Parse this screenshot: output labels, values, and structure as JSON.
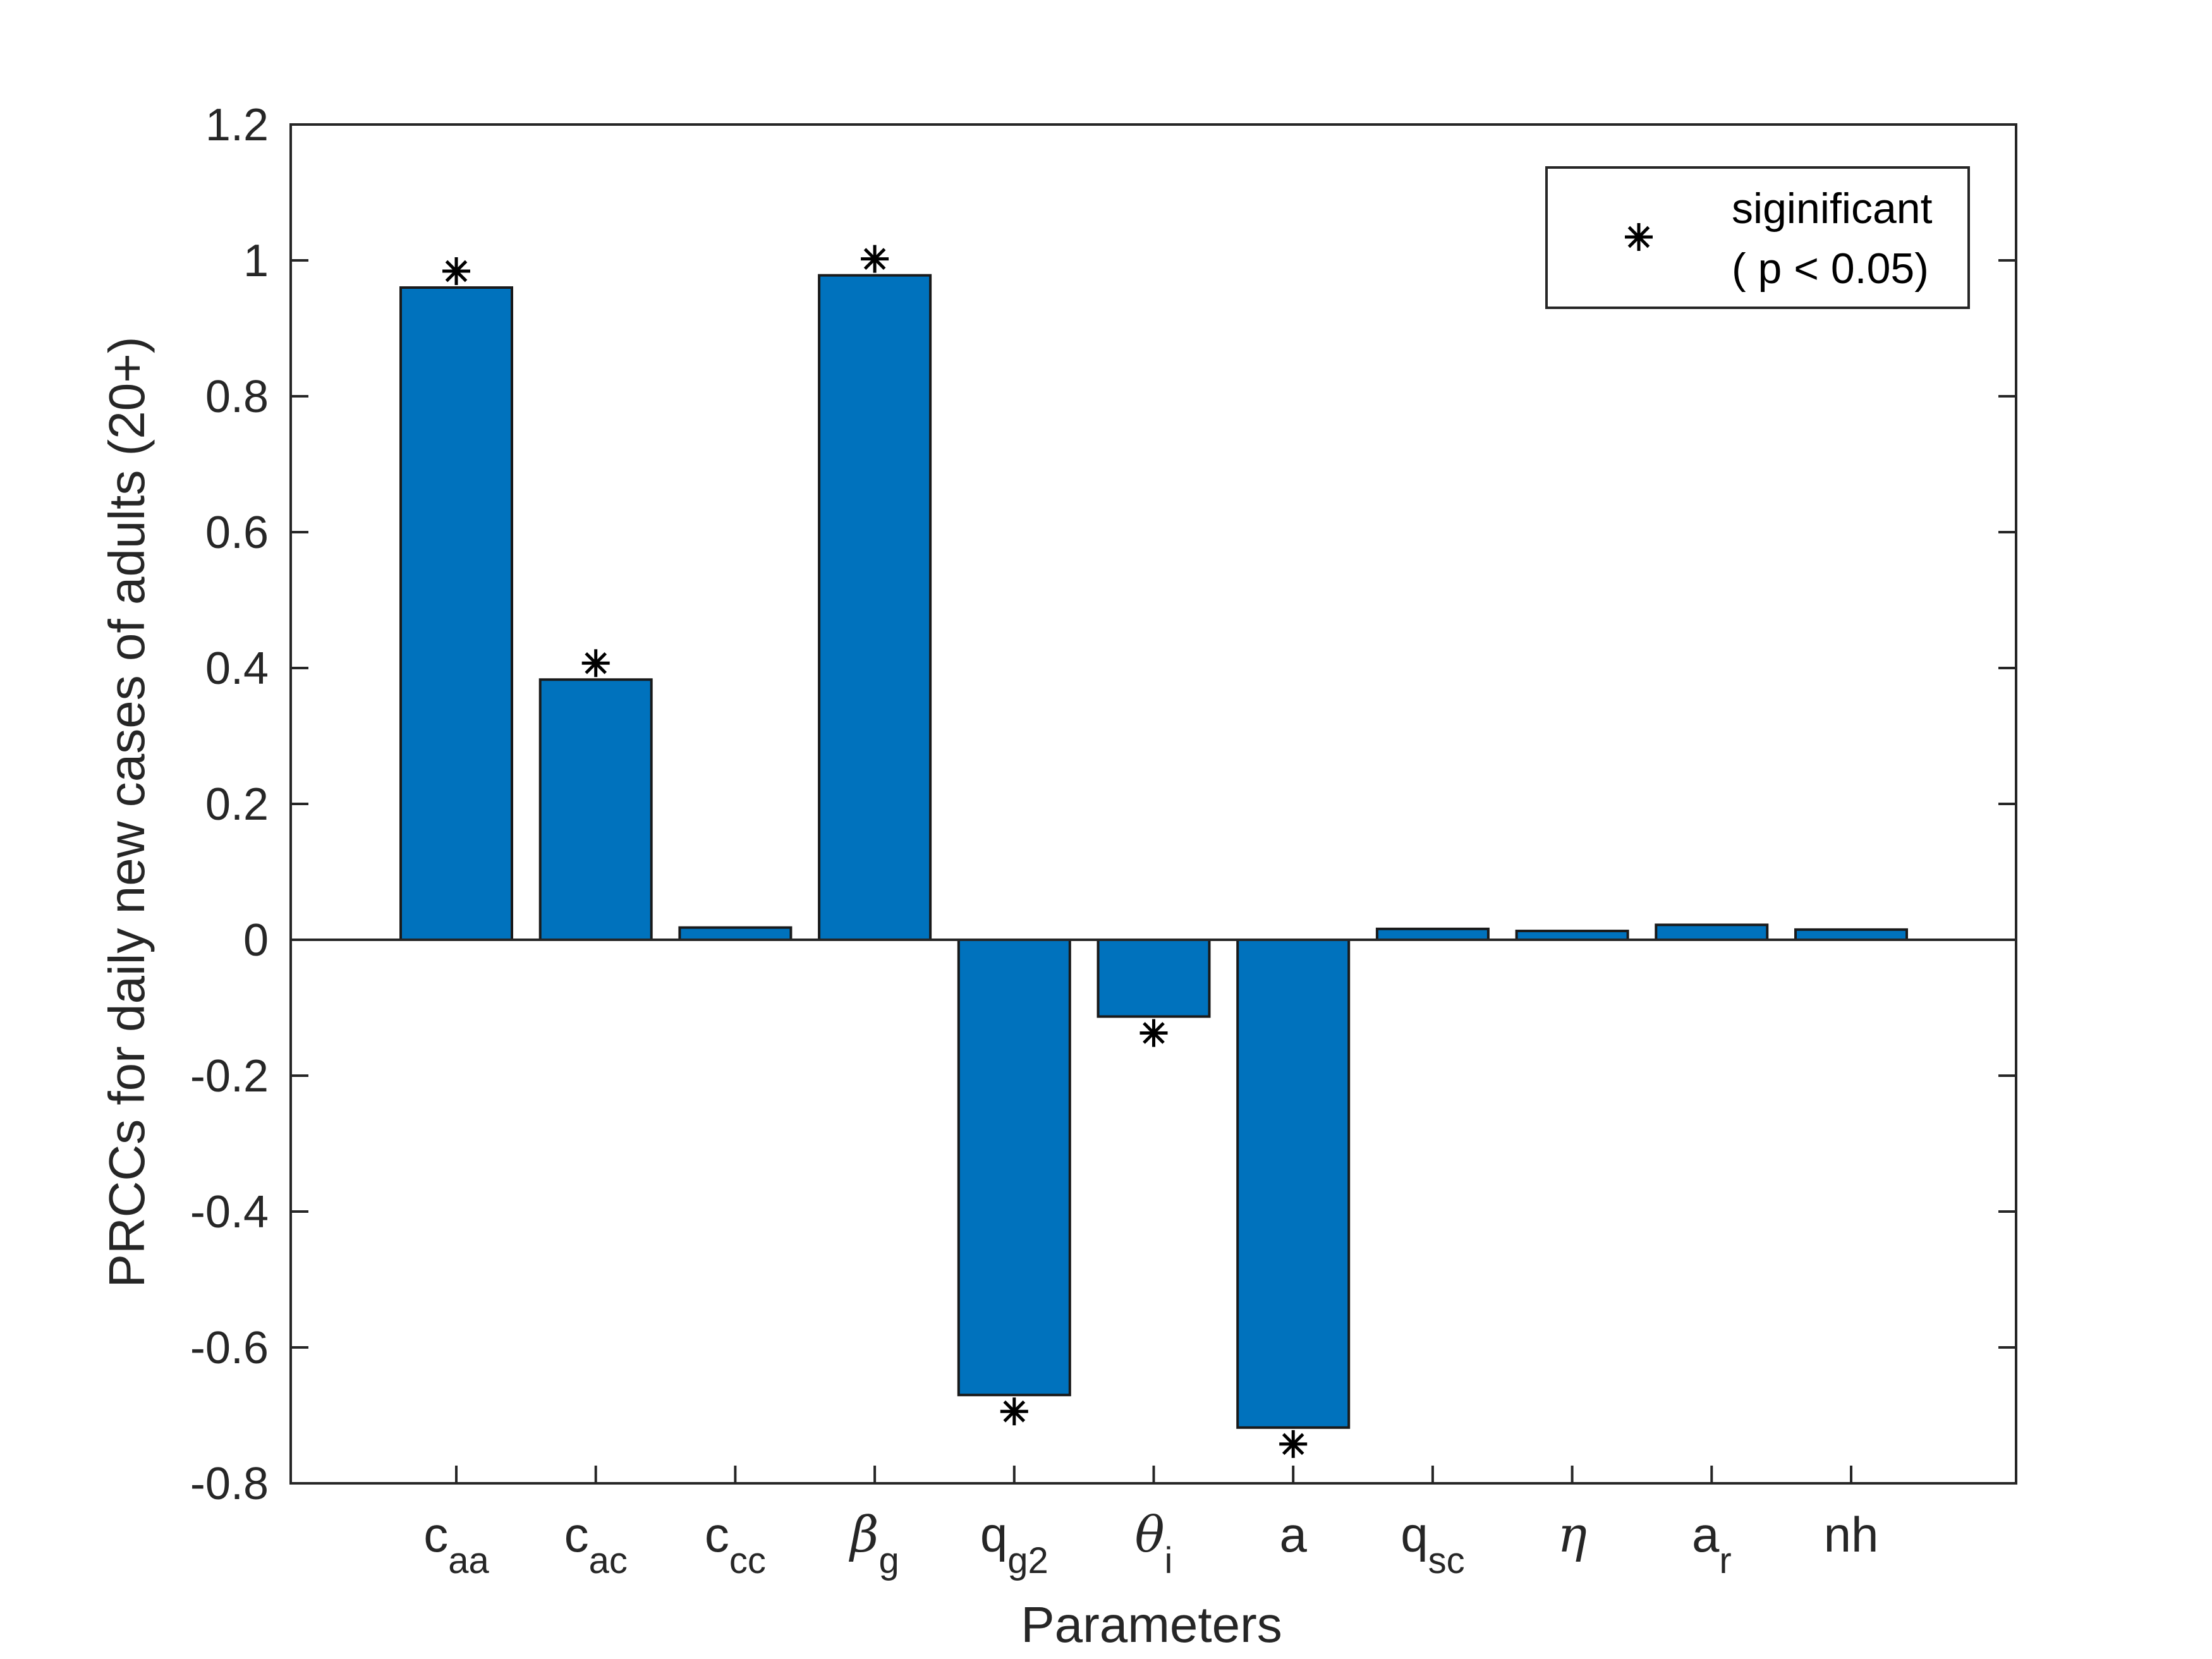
{
  "chart_data": {
    "type": "bar",
    "title": "",
    "xlabel": "Parameters",
    "ylabel": "PRCCs for daily new cases of adults (20+)",
    "ylim": [
      -0.8,
      1.2
    ],
    "yticks": [
      "-0.8",
      "-0.6",
      "-0.4",
      "-0.2",
      "0",
      "0.2",
      "0.4",
      "0.6",
      "0.8",
      "1",
      "1.2"
    ],
    "categories": [
      {
        "main": "c",
        "sub": "aa",
        "greek": false
      },
      {
        "main": "c",
        "sub": "ac",
        "greek": false
      },
      {
        "main": "c",
        "sub": "cc",
        "greek": false
      },
      {
        "main": "β",
        "sub": "g",
        "greek": true
      },
      {
        "main": "q",
        "sub": "g2",
        "greek": false
      },
      {
        "main": "θ",
        "sub": "i",
        "greek": true
      },
      {
        "main": "a",
        "sub": "",
        "greek": false
      },
      {
        "main": "q",
        "sub": "sc",
        "greek": false
      },
      {
        "main": "η",
        "sub": "",
        "greek": true
      },
      {
        "main": "a",
        "sub": "r",
        "greek": false
      },
      {
        "main": "nh",
        "sub": "",
        "greek": false
      }
    ],
    "values": [
      0.96,
      0.383,
      0.018,
      0.978,
      -0.67,
      -0.113,
      -0.718,
      0.016,
      0.013,
      0.022,
      0.015
    ],
    "significant": [
      true,
      true,
      false,
      true,
      true,
      true,
      true,
      false,
      false,
      false,
      false
    ],
    "bar_color": "#0072BD",
    "marker": "*",
    "legend": {
      "position": "top-right",
      "line1": "siginificant",
      "line2": "( p < 0.05)"
    },
    "grid": false
  }
}
